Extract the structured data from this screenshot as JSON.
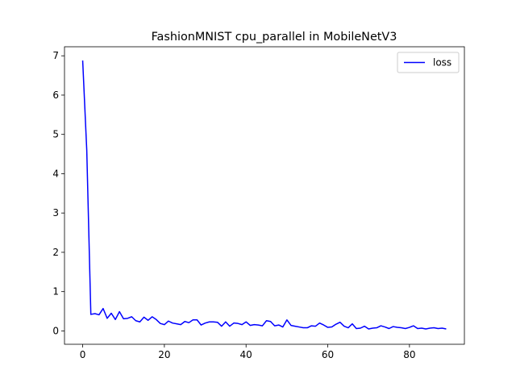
{
  "chart_data": {
    "type": "line",
    "title": "FashionMNIST cpu_parallel in MobileNetV3",
    "xlabel": "",
    "ylabel": "",
    "xlim": [
      -4.45,
      93.45
    ],
    "ylim": [
      -0.34,
      7.23
    ],
    "xticks": [
      0,
      20,
      40,
      60,
      80
    ],
    "yticks": [
      0,
      1,
      2,
      3,
      4,
      5,
      6,
      7
    ],
    "grid": false,
    "legend": {
      "placement": "upper right"
    },
    "series": [
      {
        "name": "loss",
        "color": "#0000ff",
        "x": [
          0,
          1,
          2,
          3,
          4,
          5,
          6,
          7,
          8,
          9,
          10,
          11,
          12,
          13,
          14,
          15,
          16,
          17,
          18,
          19,
          20,
          21,
          22,
          23,
          24,
          25,
          26,
          27,
          28,
          29,
          30,
          31,
          32,
          33,
          34,
          35,
          36,
          37,
          38,
          39,
          40,
          41,
          42,
          43,
          44,
          45,
          46,
          47,
          48,
          49,
          50,
          51,
          52,
          53,
          54,
          55,
          56,
          57,
          58,
          59,
          60,
          61,
          62,
          63,
          64,
          65,
          66,
          67,
          68,
          69,
          70,
          71,
          72,
          73,
          74,
          75,
          76,
          77,
          78,
          79,
          80,
          81,
          82,
          83,
          84,
          85,
          86,
          87,
          88,
          89
        ],
        "y": [
          6.88,
          4.6,
          0.42,
          0.44,
          0.41,
          0.57,
          0.32,
          0.45,
          0.29,
          0.49,
          0.31,
          0.32,
          0.36,
          0.26,
          0.23,
          0.35,
          0.27,
          0.36,
          0.29,
          0.19,
          0.16,
          0.25,
          0.2,
          0.18,
          0.16,
          0.24,
          0.21,
          0.28,
          0.28,
          0.15,
          0.2,
          0.23,
          0.23,
          0.22,
          0.12,
          0.23,
          0.12,
          0.2,
          0.19,
          0.16,
          0.23,
          0.14,
          0.16,
          0.15,
          0.13,
          0.26,
          0.24,
          0.13,
          0.15,
          0.1,
          0.28,
          0.14,
          0.12,
          0.1,
          0.08,
          0.08,
          0.13,
          0.12,
          0.2,
          0.15,
          0.09,
          0.1,
          0.17,
          0.22,
          0.12,
          0.08,
          0.18,
          0.06,
          0.07,
          0.12,
          0.05,
          0.07,
          0.08,
          0.13,
          0.1,
          0.06,
          0.11,
          0.09,
          0.08,
          0.06,
          0.09,
          0.13,
          0.06,
          0.07,
          0.05,
          0.07,
          0.08,
          0.06,
          0.07,
          0.05
        ]
      }
    ]
  }
}
